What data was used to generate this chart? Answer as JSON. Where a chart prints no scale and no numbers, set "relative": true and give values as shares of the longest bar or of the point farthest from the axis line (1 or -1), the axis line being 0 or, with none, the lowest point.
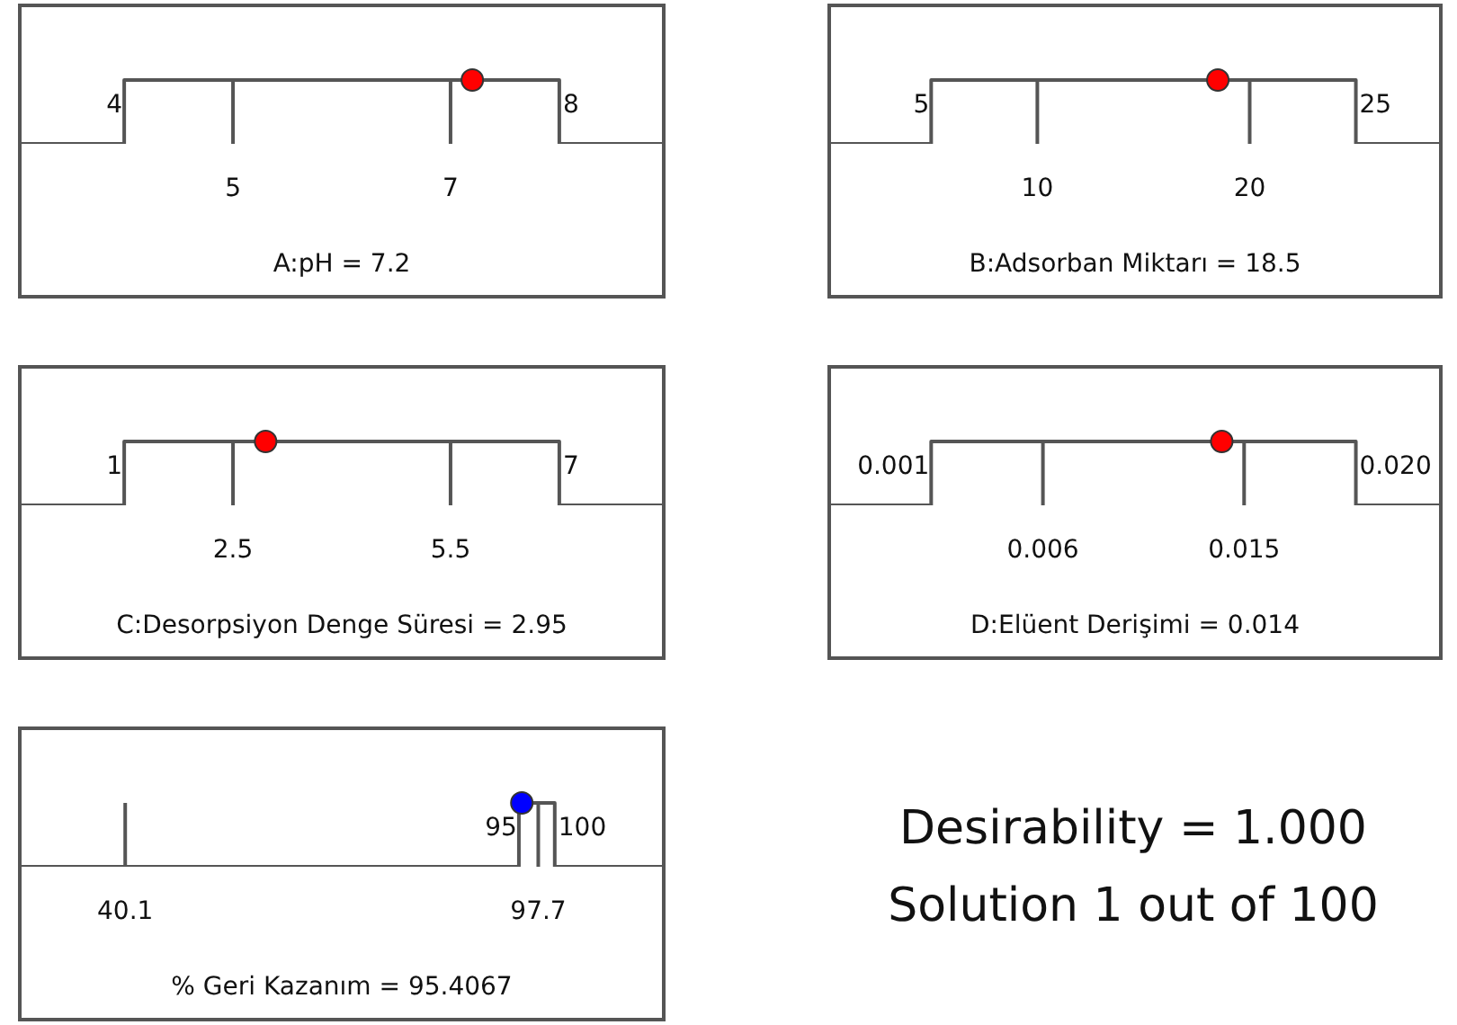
{
  "chart_data": [
    {
      "type": "line",
      "relative": true,
      "xlabel": "A:pH = 7.2",
      "xlim": [
        3.04,
        8.96
      ],
      "xticks": [
        5,
        7
      ],
      "tick_labels": "x",
      "annotations": [
        {
          "text": "4",
          "x": 4,
          "y": 0.6
        },
        {
          "text": "8",
          "x": 8,
          "y": 0.6
        }
      ],
      "series": [
        {
          "type": "line",
          "color": "#555555",
          "x": [
            3.04,
            4,
            4,
            8,
            8,
            8.96
          ],
          "values": [
            0,
            0,
            1,
            1,
            0,
            0
          ]
        },
        {
          "type": "scatter",
          "marker": "circle",
          "color": "#ff0000",
          "x": [
            7.2
          ],
          "values": [
            1
          ]
        }
      ]
    },
    {
      "type": "line",
      "relative": true,
      "xlabel": "B:Adsorban Miktarı = 18.5",
      "xlim": [
        0.2,
        29
      ],
      "xticks": [
        10,
        20
      ],
      "tick_labels": "x",
      "annotations": [
        {
          "text": "5",
          "x": 5,
          "y": 0.6
        },
        {
          "text": "25",
          "x": 25,
          "y": 0.6
        }
      ],
      "series": [
        {
          "type": "line",
          "color": "#555555",
          "x": [
            0.2,
            5,
            5,
            25,
            25,
            29
          ],
          "values": [
            0,
            0,
            1,
            1,
            0,
            0
          ]
        },
        {
          "type": "scatter",
          "marker": "circle",
          "color": "#ff0000",
          "x": [
            18.5
          ],
          "values": [
            1
          ]
        }
      ]
    },
    {
      "type": "line",
      "relative": true,
      "xlabel": "C:Desorpsiyon Denge Süresi = 2.95",
      "xlim": [
        -0.44,
        8.44
      ],
      "xticks": [
        2.5,
        5.5
      ],
      "tick_labels": "x",
      "annotations": [
        {
          "text": "1",
          "x": 1,
          "y": 0.6
        },
        {
          "text": "7",
          "x": 7,
          "y": 0.6
        }
      ],
      "series": [
        {
          "type": "line",
          "color": "#555555",
          "x": [
            -0.44,
            1,
            1,
            7,
            7,
            8.44
          ],
          "values": [
            0,
            0,
            1,
            1,
            0,
            0
          ]
        },
        {
          "type": "scatter",
          "marker": "circle",
          "color": "#ff0000",
          "x": [
            2.95
          ],
          "values": [
            1
          ]
        }
      ]
    },
    {
      "type": "line",
      "relative": true,
      "xlabel": "D:Elüent Derişimi = 0.014",
      "xlim": [
        -0.00356,
        0.0238
      ],
      "xticks": [
        0.006,
        0.015
      ],
      "tick_labels": "x",
      "annotations": [
        {
          "text": "0.001",
          "x": 0.001,
          "y": 0.6
        },
        {
          "text": "0.020",
          "x": 0.02,
          "y": 0.6
        }
      ],
      "series": [
        {
          "type": "line",
          "color": "#555555",
          "x": [
            -0.00356,
            0.001,
            0.001,
            0.02,
            0.02,
            0.0238
          ],
          "values": [
            0,
            0,
            1,
            1,
            0,
            0
          ]
        },
        {
          "type": "scatter",
          "marker": "circle",
          "color": "#ff0000",
          "x": [
            0.014
          ],
          "values": [
            1
          ]
        }
      ]
    },
    {
      "type": "line",
      "relative": true,
      "xlabel": "% Geri Kazanım = 95.4067",
      "xlim": [
        25.4,
        115.2
      ],
      "xticks": [
        40.1,
        97.7
      ],
      "tick_labels": "x",
      "annotations": [
        {
          "text": "95",
          "x": 95,
          "y": 0.6
        },
        {
          "text": "100",
          "x": 100,
          "y": 0.6
        }
      ],
      "series": [
        {
          "type": "line",
          "color": "#555555",
          "x": [
            25.4,
            95,
            95,
            100,
            100,
            115.2
          ],
          "values": [
            0,
            0,
            1,
            1,
            0,
            0
          ]
        },
        {
          "type": "scatter",
          "marker": "circle",
          "color": "#0000ff",
          "x": [
            95.4067
          ],
          "values": [
            1
          ]
        }
      ]
    },
    {
      "type": "other",
      "annotations": [
        "Desirability = 1.000",
        "Solution 1 out of 100"
      ]
    }
  ]
}
